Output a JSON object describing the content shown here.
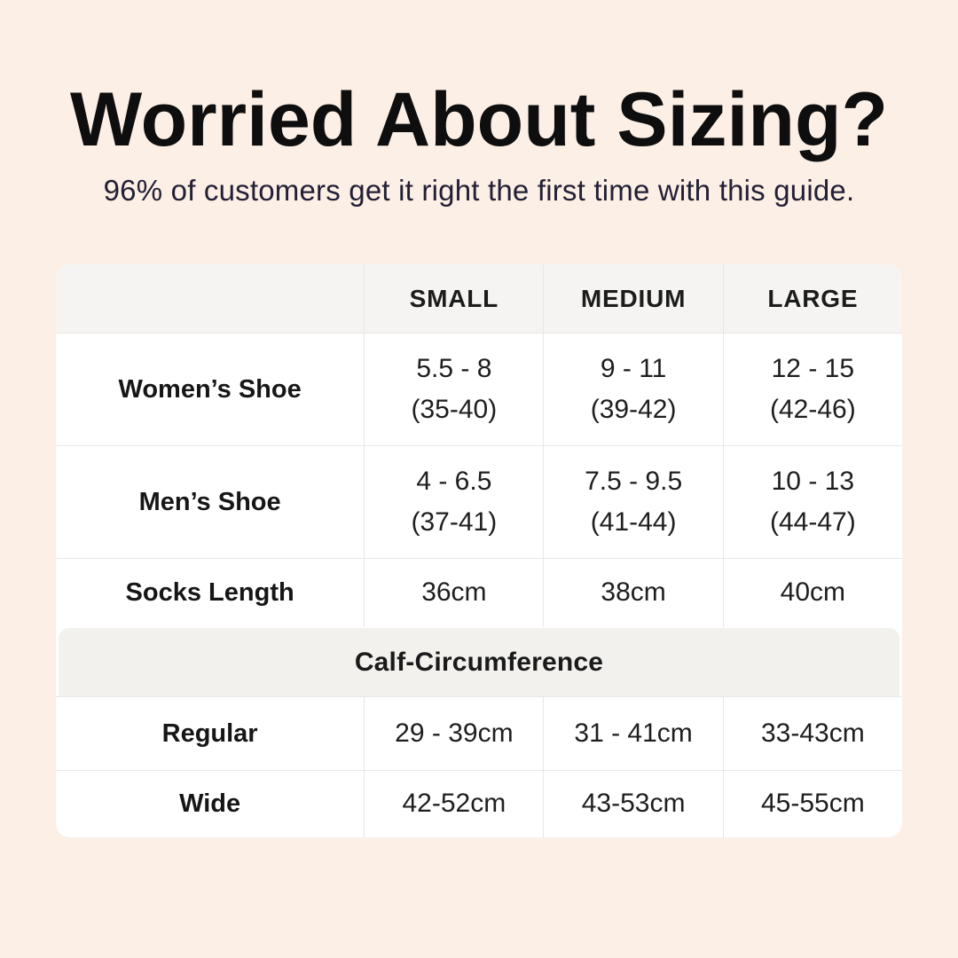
{
  "header": {
    "title": "Worried About Sizing?",
    "subtitle": "96% of customers get it right the first time with this guide."
  },
  "colors": {
    "page_background": "#fcefe5",
    "title_text": "#0e0e0e",
    "subtitle_text": "#232036",
    "table_background": "#ffffff",
    "header_band": "#f5f4f2",
    "section_band": "#f2f1ee",
    "grid_border": "#e9e7e3"
  },
  "table": {
    "columns": [
      "",
      "SMALL",
      "MEDIUM",
      "LARGE"
    ],
    "rows": [
      {
        "label": "Women’s Shoe",
        "cells": [
          [
            "5.5 - 8",
            "(35-40)"
          ],
          [
            "9 - 11",
            "(39-42)"
          ],
          [
            "12 - 15",
            "(42-46)"
          ]
        ]
      },
      {
        "label": "Men’s Shoe",
        "cells": [
          [
            "4 - 6.5",
            "(37-41)"
          ],
          [
            "7.5 - 9.5",
            "(41-44)"
          ],
          [
            "10 - 13",
            "(44-47)"
          ]
        ]
      },
      {
        "label": "Socks Length",
        "cells": [
          [
            "36cm"
          ],
          [
            "38cm"
          ],
          [
            "40cm"
          ]
        ]
      }
    ],
    "section_header": "Calf-Circumference",
    "calf_rows": [
      {
        "label": "Regular",
        "cells": [
          [
            "29 - 39cm"
          ],
          [
            "31 - 41cm"
          ],
          [
            "33-43cm"
          ]
        ]
      },
      {
        "label": "Wide",
        "cells": [
          [
            "42-52cm"
          ],
          [
            "43-53cm"
          ],
          [
            "45-55cm"
          ]
        ]
      }
    ]
  }
}
